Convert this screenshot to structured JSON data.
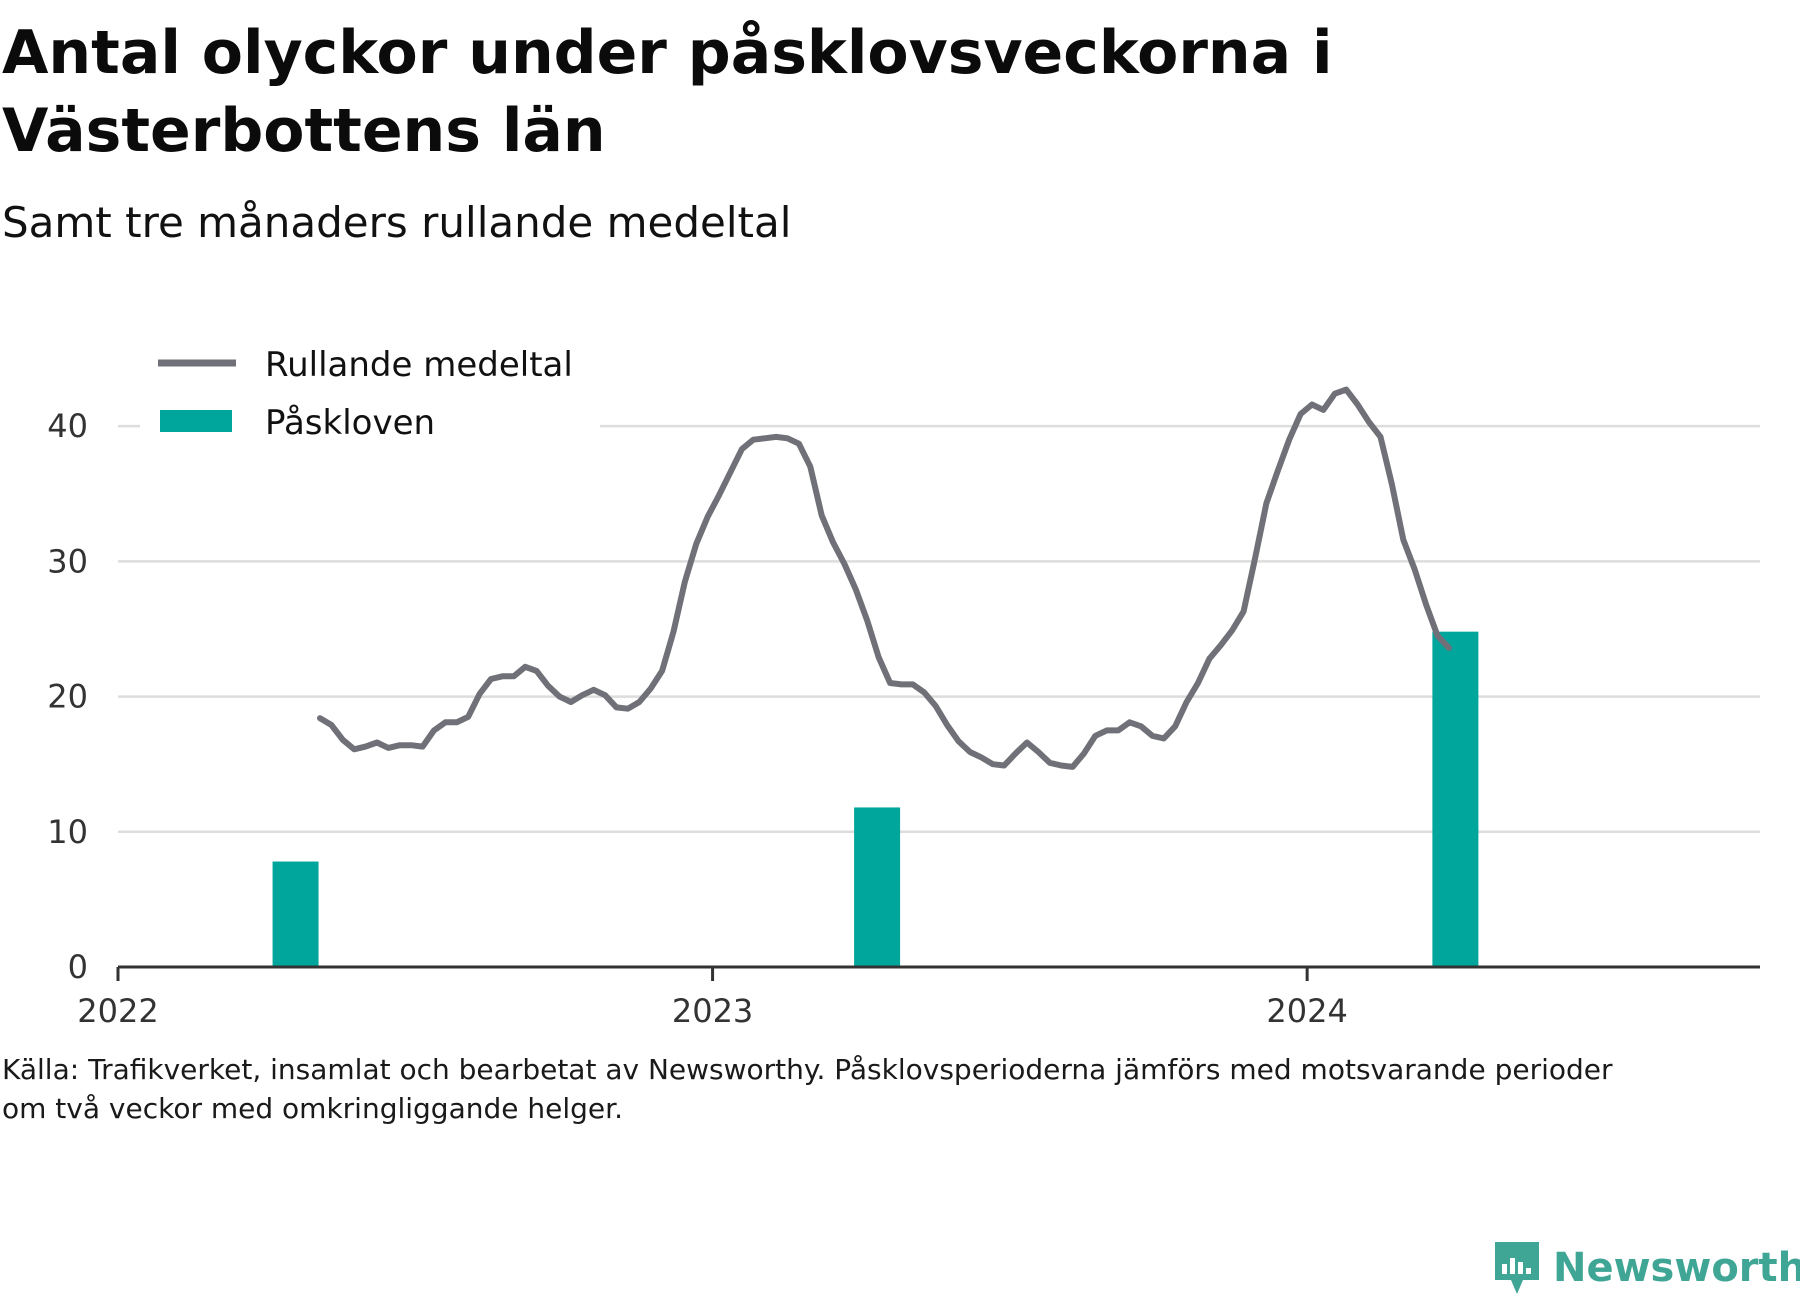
{
  "title": "Antal olyckor under påsklovsveckorna i Västerbottens län",
  "subtitle": "Samt tre månaders rullande medeltal",
  "source_line_1": "Källa: Trafikverket, insamlat och bearbetat av Newsworthy. Påsklovsperioderna jämförs med motsvarande perioder",
  "source_line_2": "om två veckor med omkringliggande helger.",
  "brand": {
    "name": "Newsworthy",
    "color": "#3fa595",
    "icon": "newsworthy-logo-icon"
  },
  "chart_data": {
    "type": "bar+line",
    "x_axis": {
      "type": "time",
      "ticks": [
        "2022",
        "2023",
        "2024"
      ],
      "range": [
        "2022-01-01",
        "2024-10-05"
      ]
    },
    "y_axis": {
      "ticks": [
        0,
        10,
        20,
        30,
        40
      ],
      "range": [
        0,
        46
      ],
      "grid": true
    },
    "legend": {
      "position": "top-left",
      "items": [
        "Rullande medeltal",
        "Påskloven"
      ]
    },
    "colors": {
      "line": "#707078",
      "bar": "#00a69c",
      "grid": "#dddddd",
      "axis": "#333333"
    },
    "bars": {
      "name": "Påskloven",
      "values": [
        {
          "date": "2022-04-20",
          "value": 7.8
        },
        {
          "date": "2023-04-12",
          "value": 11.8
        },
        {
          "date": "2024-04-01",
          "value": 24.8
        }
      ]
    },
    "line": {
      "name": "Rullande medeltal",
      "points": [
        {
          "date": "2022-05-05",
          "value": 18.4
        },
        {
          "date": "2022-05-12",
          "value": 17.9
        },
        {
          "date": "2022-05-19",
          "value": 16.8
        },
        {
          "date": "2022-05-26",
          "value": 16.1
        },
        {
          "date": "2022-06-02",
          "value": 16.3
        },
        {
          "date": "2022-06-09",
          "value": 16.6
        },
        {
          "date": "2022-06-16",
          "value": 16.2
        },
        {
          "date": "2022-06-23",
          "value": 16.4
        },
        {
          "date": "2022-06-30",
          "value": 16.4
        },
        {
          "date": "2022-07-07",
          "value": 16.3
        },
        {
          "date": "2022-07-14",
          "value": 17.5
        },
        {
          "date": "2022-07-21",
          "value": 18.1
        },
        {
          "date": "2022-07-28",
          "value": 18.1
        },
        {
          "date": "2022-08-04",
          "value": 18.5
        },
        {
          "date": "2022-08-11",
          "value": 20.2
        },
        {
          "date": "2022-08-18",
          "value": 21.3
        },
        {
          "date": "2022-08-25",
          "value": 21.5
        },
        {
          "date": "2022-09-01",
          "value": 21.5
        },
        {
          "date": "2022-09-08",
          "value": 22.2
        },
        {
          "date": "2022-09-15",
          "value": 21.9
        },
        {
          "date": "2022-09-22",
          "value": 20.8
        },
        {
          "date": "2022-09-29",
          "value": 20.0
        },
        {
          "date": "2022-10-06",
          "value": 19.6
        },
        {
          "date": "2022-10-13",
          "value": 20.1
        },
        {
          "date": "2022-10-20",
          "value": 20.5
        },
        {
          "date": "2022-10-27",
          "value": 20.1
        },
        {
          "date": "2022-11-03",
          "value": 19.2
        },
        {
          "date": "2022-11-10",
          "value": 19.1
        },
        {
          "date": "2022-11-17",
          "value": 19.6
        },
        {
          "date": "2022-11-24",
          "value": 20.6
        },
        {
          "date": "2022-12-01",
          "value": 21.9
        },
        {
          "date": "2022-12-08",
          "value": 24.8
        },
        {
          "date": "2022-12-15",
          "value": 28.5
        },
        {
          "date": "2022-12-22",
          "value": 31.3
        },
        {
          "date": "2022-12-29",
          "value": 33.3
        },
        {
          "date": "2023-01-05",
          "value": 34.9
        },
        {
          "date": "2023-01-12",
          "value": 36.6
        },
        {
          "date": "2023-01-19",
          "value": 38.3
        },
        {
          "date": "2023-01-26",
          "value": 39.0
        },
        {
          "date": "2023-02-02",
          "value": 39.1
        },
        {
          "date": "2023-02-09",
          "value": 39.2
        },
        {
          "date": "2023-02-16",
          "value": 39.1
        },
        {
          "date": "2023-02-23",
          "value": 38.7
        },
        {
          "date": "2023-03-02",
          "value": 37.0
        },
        {
          "date": "2023-03-09",
          "value": 33.4
        },
        {
          "date": "2023-03-16",
          "value": 31.4
        },
        {
          "date": "2023-03-23",
          "value": 29.8
        },
        {
          "date": "2023-03-30",
          "value": 27.9
        },
        {
          "date": "2023-04-06",
          "value": 25.6
        },
        {
          "date": "2023-04-13",
          "value": 22.9
        },
        {
          "date": "2023-04-20",
          "value": 21.0
        },
        {
          "date": "2023-04-27",
          "value": 20.9
        },
        {
          "date": "2023-05-04",
          "value": 20.9
        },
        {
          "date": "2023-05-11",
          "value": 20.3
        },
        {
          "date": "2023-05-18",
          "value": 19.3
        },
        {
          "date": "2023-05-25",
          "value": 17.9
        },
        {
          "date": "2023-06-01",
          "value": 16.7
        },
        {
          "date": "2023-06-08",
          "value": 15.9
        },
        {
          "date": "2023-06-15",
          "value": 15.5
        },
        {
          "date": "2023-06-22",
          "value": 15.0
        },
        {
          "date": "2023-06-29",
          "value": 14.9
        },
        {
          "date": "2023-07-06",
          "value": 15.8
        },
        {
          "date": "2023-07-13",
          "value": 16.6
        },
        {
          "date": "2023-07-20",
          "value": 15.9
        },
        {
          "date": "2023-07-27",
          "value": 15.1
        },
        {
          "date": "2023-08-03",
          "value": 14.9
        },
        {
          "date": "2023-08-10",
          "value": 14.8
        },
        {
          "date": "2023-08-17",
          "value": 15.8
        },
        {
          "date": "2023-08-24",
          "value": 17.1
        },
        {
          "date": "2023-08-31",
          "value": 17.5
        },
        {
          "date": "2023-09-07",
          "value": 17.5
        },
        {
          "date": "2023-09-14",
          "value": 18.1
        },
        {
          "date": "2023-09-21",
          "value": 17.8
        },
        {
          "date": "2023-09-28",
          "value": 17.1
        },
        {
          "date": "2023-10-05",
          "value": 16.9
        },
        {
          "date": "2023-10-12",
          "value": 17.8
        },
        {
          "date": "2023-10-19",
          "value": 19.6
        },
        {
          "date": "2023-10-26",
          "value": 21.0
        },
        {
          "date": "2023-11-02",
          "value": 22.8
        },
        {
          "date": "2023-11-09",
          "value": 23.8
        },
        {
          "date": "2023-11-16",
          "value": 24.9
        },
        {
          "date": "2023-11-23",
          "value": 26.3
        },
        {
          "date": "2023-11-30",
          "value": 30.2
        },
        {
          "date": "2023-12-07",
          "value": 34.3
        },
        {
          "date": "2023-12-14",
          "value": 36.7
        },
        {
          "date": "2023-12-21",
          "value": 39.0
        },
        {
          "date": "2023-12-28",
          "value": 40.9
        },
        {
          "date": "2024-01-04",
          "value": 41.6
        },
        {
          "date": "2024-01-11",
          "value": 41.2
        },
        {
          "date": "2024-01-18",
          "value": 42.4
        },
        {
          "date": "2024-01-25",
          "value": 42.7
        },
        {
          "date": "2024-02-01",
          "value": 41.6
        },
        {
          "date": "2024-02-08",
          "value": 40.3
        },
        {
          "date": "2024-02-15",
          "value": 39.2
        },
        {
          "date": "2024-02-22",
          "value": 35.7
        },
        {
          "date": "2024-02-29",
          "value": 31.6
        },
        {
          "date": "2024-03-07",
          "value": 29.4
        },
        {
          "date": "2024-03-14",
          "value": 26.8
        },
        {
          "date": "2024-03-21",
          "value": 24.5
        },
        {
          "date": "2024-03-28",
          "value": 23.6
        }
      ]
    }
  }
}
